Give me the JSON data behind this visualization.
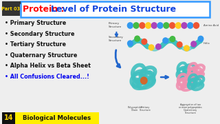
{
  "title_part1": "Protein : ",
  "title_part2": "Level of Protein Structure",
  "title_color1": "#FF0000",
  "title_color2": "#1144DD",
  "title_bg": "#FFFFFF",
  "title_border": "#3399FF",
  "part_label": "Part 03",
  "part_bg": "#333333",
  "part_text_color": "#FFD700",
  "bullet_items": [
    "Primary Structure",
    "Secondary Structure",
    "Tertiary Structure",
    "Quaternary Structure",
    "Alpha Helix vs Beta Sheet"
  ],
  "bullet_last": "All Confusions Cleared...!",
  "bullet_color": "#111111",
  "bullet_last_color": "#0000EE",
  "bottom_label_num": "14",
  "bottom_label_text": "Biological Molecules",
  "bottom_bg": "#FFEE00",
  "bottom_num_bg": "#111111",
  "bottom_text_color": "#111111",
  "bg_color": "#EEEEEE",
  "teal": "#40C0C0",
  "pink": "#F090B0",
  "orange": "#E06020",
  "arrow_color": "#2266CC",
  "label_color": "#444444",
  "bead_colors": [
    "#3399EE",
    "#44BB44",
    "#EE5533",
    "#FFCC22",
    "#AA44BB",
    "#3399EE",
    "#44BB44",
    "#EE5533",
    "#FFCC22",
    "#AA44BB",
    "#3399EE",
    "#EE5533"
  ],
  "struct_label_fontsize": 3.0,
  "bullet_fontsize": 5.8
}
